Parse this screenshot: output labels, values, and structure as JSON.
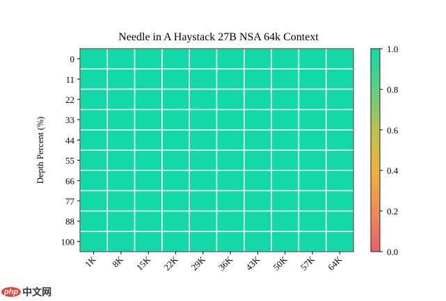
{
  "chart_data": {
    "type": "heatmap",
    "title": "Needle in A Haystack 27B NSA 64k Context",
    "xlabel": "",
    "ylabel": "Depth Percent (%)",
    "x_categories": [
      "1K",
      "8K",
      "15K",
      "22K",
      "29K",
      "36K",
      "43K",
      "50K",
      "57K",
      "64K"
    ],
    "y_categories": [
      "0",
      "11",
      "22",
      "33",
      "44",
      "55",
      "66",
      "77",
      "88",
      "100"
    ],
    "values": [
      [
        1,
        1,
        1,
        1,
        1,
        1,
        1,
        1,
        1,
        1
      ],
      [
        1,
        1,
        1,
        1,
        1,
        1,
        1,
        1,
        1,
        1
      ],
      [
        1,
        1,
        1,
        1,
        1,
        1,
        1,
        1,
        1,
        1
      ],
      [
        1,
        1,
        1,
        1,
        1,
        1,
        1,
        1,
        1,
        1
      ],
      [
        1,
        1,
        1,
        1,
        1,
        1,
        1,
        1,
        1,
        1
      ],
      [
        1,
        1,
        1,
        1,
        1,
        1,
        1,
        1,
        1,
        1
      ],
      [
        1,
        1,
        1,
        1,
        1,
        1,
        1,
        1,
        1,
        1
      ],
      [
        1,
        1,
        1,
        1,
        1,
        1,
        1,
        1,
        1,
        1
      ],
      [
        1,
        1,
        1,
        1,
        1,
        1,
        1,
        1,
        1,
        1
      ],
      [
        1,
        1,
        1,
        1,
        1,
        1,
        1,
        1,
        1,
        1
      ]
    ],
    "colorbar": {
      "range": [
        0,
        1
      ],
      "ticks": [
        "0.0",
        "0.2",
        "0.4",
        "0.6",
        "0.8",
        "1.0"
      ],
      "colors": [
        "#e8606a",
        "#ee8c55",
        "#efb23e",
        "#b9c250",
        "#5fcf84",
        "#12d9a7"
      ]
    },
    "grid": true
  },
  "watermark": {
    "logo": "php",
    "text": "中文网"
  }
}
